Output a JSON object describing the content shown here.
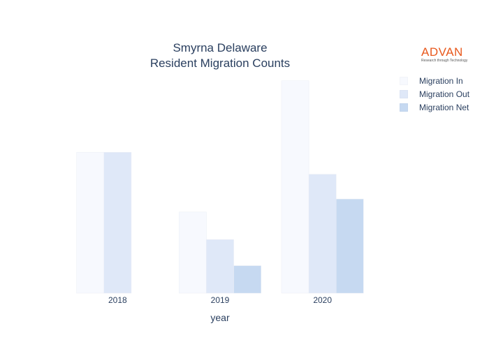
{
  "chart_data": {
    "type": "bar",
    "title": "Smyrna Delaware",
    "subtitle": "Resident Migration Counts",
    "xlabel": "year",
    "ylabel": "",
    "categories": [
      "2018",
      "2019",
      "2020"
    ],
    "series": [
      {
        "name": "Migration In",
        "color": "#f7f9fe",
        "values": [
          205,
          118,
          309
        ]
      },
      {
        "name": "Migration Out",
        "color": "#dfe8f8",
        "values": [
          205,
          78,
          173
        ]
      },
      {
        "name": "Migration Net",
        "color": "#c6d9f1",
        "values": [
          0,
          40,
          137
        ]
      }
    ],
    "ylim": [
      0,
      325
    ],
    "grid": false,
    "legend_position": "top-right"
  },
  "logo": {
    "name": "ADVAN",
    "tagline": "Research through Technology"
  }
}
